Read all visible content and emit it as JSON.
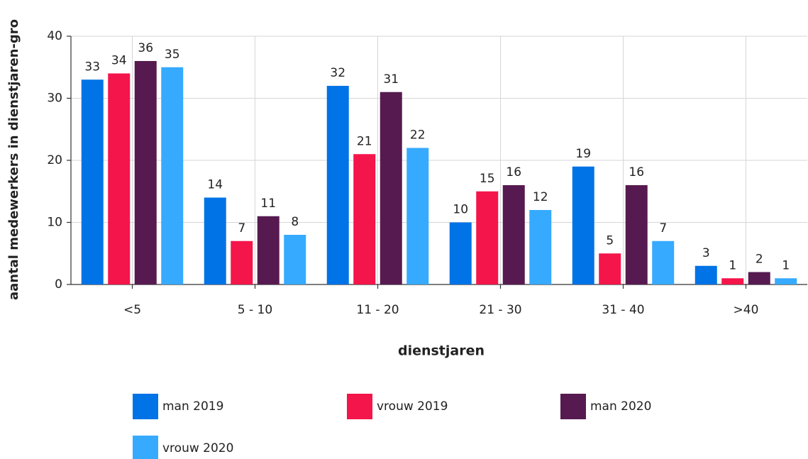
{
  "chart_data": {
    "type": "bar",
    "y_axis_label": "aantal medewerkers in dienstjaren-gro",
    "x_axis_label": "dienstjaren",
    "categories": [
      "<5",
      "5 - 10",
      "11 - 20",
      "21 - 30",
      "31 - 40",
      ">40"
    ],
    "series": [
      {
        "name": "man 2019",
        "color": "#0073e6",
        "values": [
          33,
          14,
          32,
          10,
          19,
          3
        ]
      },
      {
        "name": "vrouw 2019",
        "color": "#f4154a",
        "values": [
          34,
          7,
          21,
          15,
          5,
          1
        ]
      },
      {
        "name": "man 2020",
        "color": "#561a50",
        "values": [
          36,
          11,
          31,
          16,
          16,
          2
        ]
      },
      {
        "name": "vrouw 2020",
        "color": "#36aaff",
        "values": [
          35,
          8,
          22,
          12,
          7,
          1
        ]
      }
    ],
    "ylim": [
      0,
      40
    ],
    "yticks": [
      0,
      10,
      20,
      30,
      40
    ],
    "grid": true,
    "legend": "bottom"
  }
}
